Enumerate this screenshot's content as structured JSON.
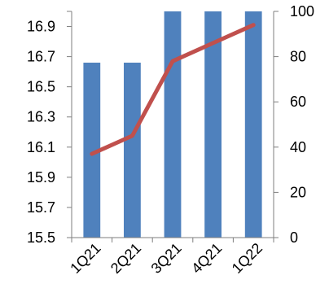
{
  "chart_data": {
    "type": "bar",
    "categories": [
      "1Q21",
      "2Q21",
      "3Q21",
      "4Q21",
      "1Q22"
    ],
    "series": [
      {
        "type": "bar",
        "axis": "left",
        "color": "#4F81BD",
        "values": [
          16.66,
          16.66,
          17.0,
          17.0,
          17.0
        ]
      },
      {
        "type": "line",
        "axis": "right",
        "color": "#C0504D",
        "values": [
          37,
          45,
          78,
          86,
          94
        ]
      }
    ],
    "y_left": {
      "ylim": [
        15.5,
        17.0
      ],
      "ticks": [
        "15.5",
        "15.7",
        "15.9",
        "16.1",
        "16.3",
        "16.5",
        "16.7",
        "16.9"
      ]
    },
    "y_right": {
      "ylim": [
        0,
        100
      ],
      "ticks": [
        "0",
        "20",
        "40",
        "60",
        "80",
        "100"
      ]
    },
    "grid": false,
    "legend": false
  }
}
